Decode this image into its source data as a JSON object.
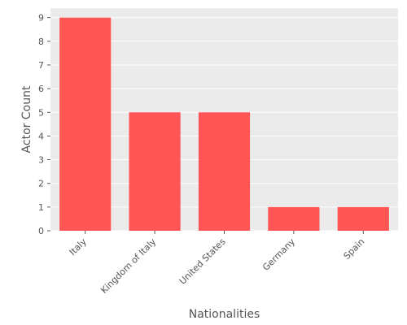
{
  "chart_data": {
    "type": "bar",
    "categories": [
      "Italy",
      "Kingdom of Italy",
      "United States",
      "Germany",
      "Spain"
    ],
    "values": [
      9,
      5,
      5,
      1,
      1
    ],
    "xlabel": "Nationalities",
    "ylabel": "Actor Count",
    "ylim": [
      0,
      9.4
    ],
    "yticks": [
      0,
      1,
      2,
      3,
      4,
      5,
      6,
      7,
      8,
      9
    ],
    "grid": true,
    "colors": {
      "bar": "#FF5555",
      "plot_background": "#EBEBEB",
      "grid": "#FFFFFF",
      "text": "#555555"
    }
  }
}
